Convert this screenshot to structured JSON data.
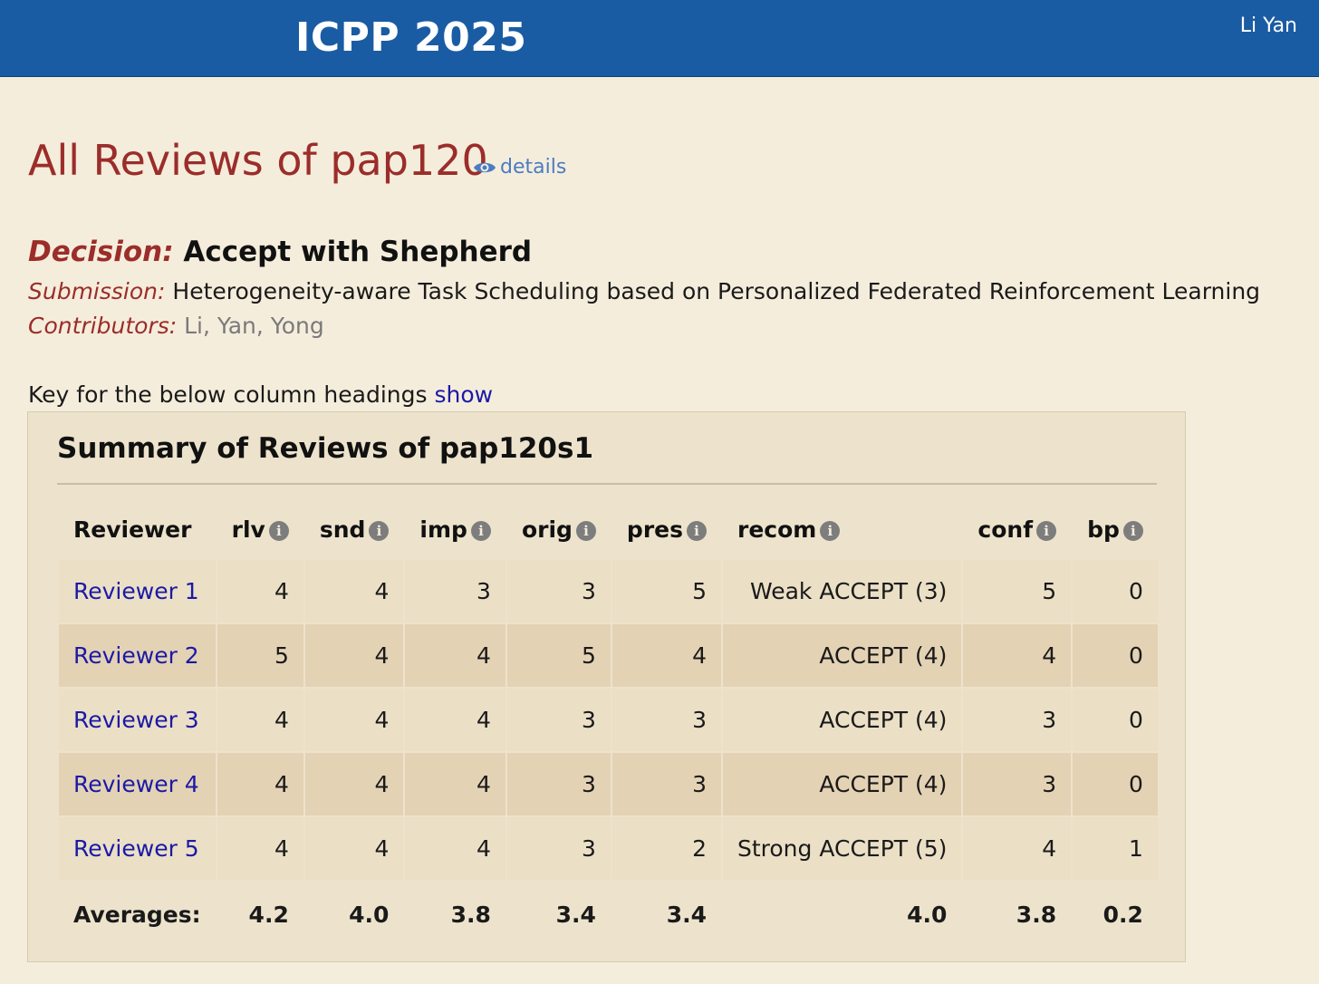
{
  "header": {
    "conference": "ICPP 2025",
    "user": "Li Yan"
  },
  "page": {
    "title": "All Reviews of pap120",
    "details_label": "details"
  },
  "decision": {
    "label": "Decision:",
    "value": "Accept with Shepherd"
  },
  "submission": {
    "label": "Submission:",
    "value": "Heterogeneity-aware Task Scheduling based on Personalized Federated Reinforcement Learning"
  },
  "contributors": {
    "label": "Contributors:",
    "value": "Li, Yan, Yong"
  },
  "key": {
    "text": "Key for the below column headings",
    "show_label": "show"
  },
  "summary": {
    "title": "Summary of Reviews of pap120s1",
    "columns": [
      "Reviewer",
      "rlv",
      "snd",
      "imp",
      "orig",
      "pres",
      "recom",
      "conf",
      "bp"
    ],
    "info_icon_glyph": "i",
    "rows": [
      {
        "reviewer": "Reviewer 1",
        "rlv": "4",
        "snd": "4",
        "imp": "3",
        "orig": "3",
        "pres": "5",
        "recom": "Weak ACCEPT (3)",
        "conf": "5",
        "bp": "0"
      },
      {
        "reviewer": "Reviewer 2",
        "rlv": "5",
        "snd": "4",
        "imp": "4",
        "orig": "5",
        "pres": "4",
        "recom": "ACCEPT (4)",
        "conf": "4",
        "bp": "0"
      },
      {
        "reviewer": "Reviewer 3",
        "rlv": "4",
        "snd": "4",
        "imp": "4",
        "orig": "3",
        "pres": "3",
        "recom": "ACCEPT (4)",
        "conf": "3",
        "bp": "0"
      },
      {
        "reviewer": "Reviewer 4",
        "rlv": "4",
        "snd": "4",
        "imp": "4",
        "orig": "3",
        "pres": "3",
        "recom": "ACCEPT (4)",
        "conf": "3",
        "bp": "0"
      },
      {
        "reviewer": "Reviewer 5",
        "rlv": "4",
        "snd": "4",
        "imp": "4",
        "orig": "3",
        "pres": "2",
        "recom": "Strong ACCEPT (5)",
        "conf": "4",
        "bp": "1"
      }
    ],
    "averages": {
      "label": "Averages:",
      "rlv": "4.2",
      "snd": "4.0",
      "imp": "3.8",
      "orig": "3.4",
      "pres": "3.4",
      "recom": "4.0",
      "conf": "3.8",
      "bp": "0.2"
    }
  },
  "colors": {
    "header_bg": "#1a5ca3",
    "page_bg": "#f5eddc",
    "title_red": "#9b2d2a",
    "link_blue": "#1a1aa6"
  }
}
